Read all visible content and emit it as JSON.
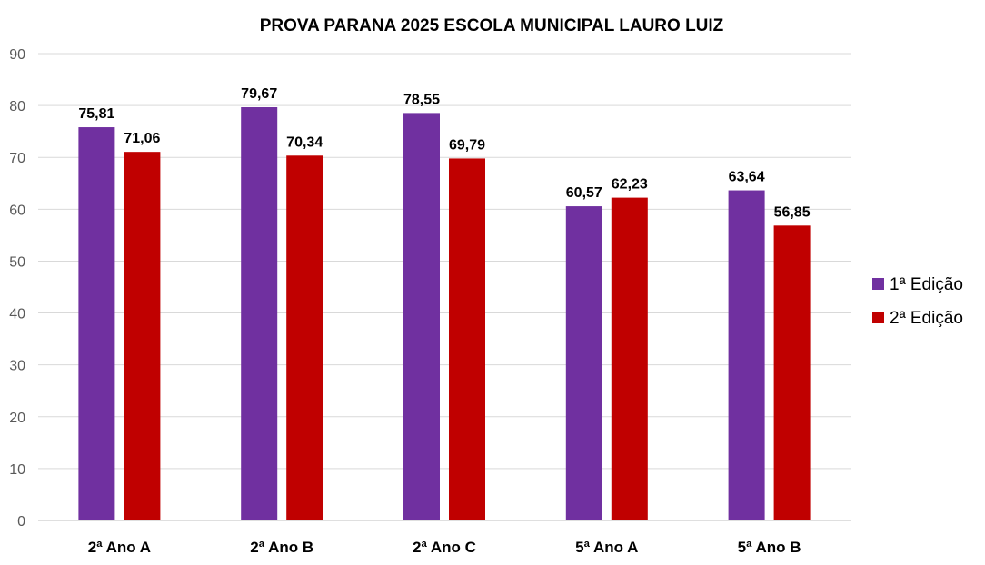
{
  "chart_data": {
    "type": "bar",
    "title": "PROVA PARANA 2025 ESCOLA MUNICIPAL LAURO LUIZ",
    "categories": [
      "2ª Ano A",
      "2ª Ano B",
      "2ª Ano C",
      "5ª Ano A",
      "5ª Ano B"
    ],
    "series": [
      {
        "name": "1ª Edição",
        "color": "#7030A0",
        "values": [
          75.81,
          79.67,
          78.55,
          60.57,
          63.64
        ],
        "labels": [
          "75,81",
          "79,67",
          "78,55",
          "60,57",
          "63,64"
        ]
      },
      {
        "name": "2ª Edição",
        "color": "#C00000",
        "values": [
          71.06,
          70.34,
          69.79,
          62.23,
          56.85
        ],
        "labels": [
          "71,06",
          "70,34",
          "69,79",
          "62,23",
          "56,85"
        ]
      }
    ],
    "ylim": [
      0,
      90
    ],
    "yticks": [
      "0",
      "10",
      "20",
      "30",
      "40",
      "50",
      "60",
      "70",
      "80",
      "90"
    ],
    "xlabel": "",
    "ylabel": "",
    "grid": true,
    "legend": "right"
  }
}
